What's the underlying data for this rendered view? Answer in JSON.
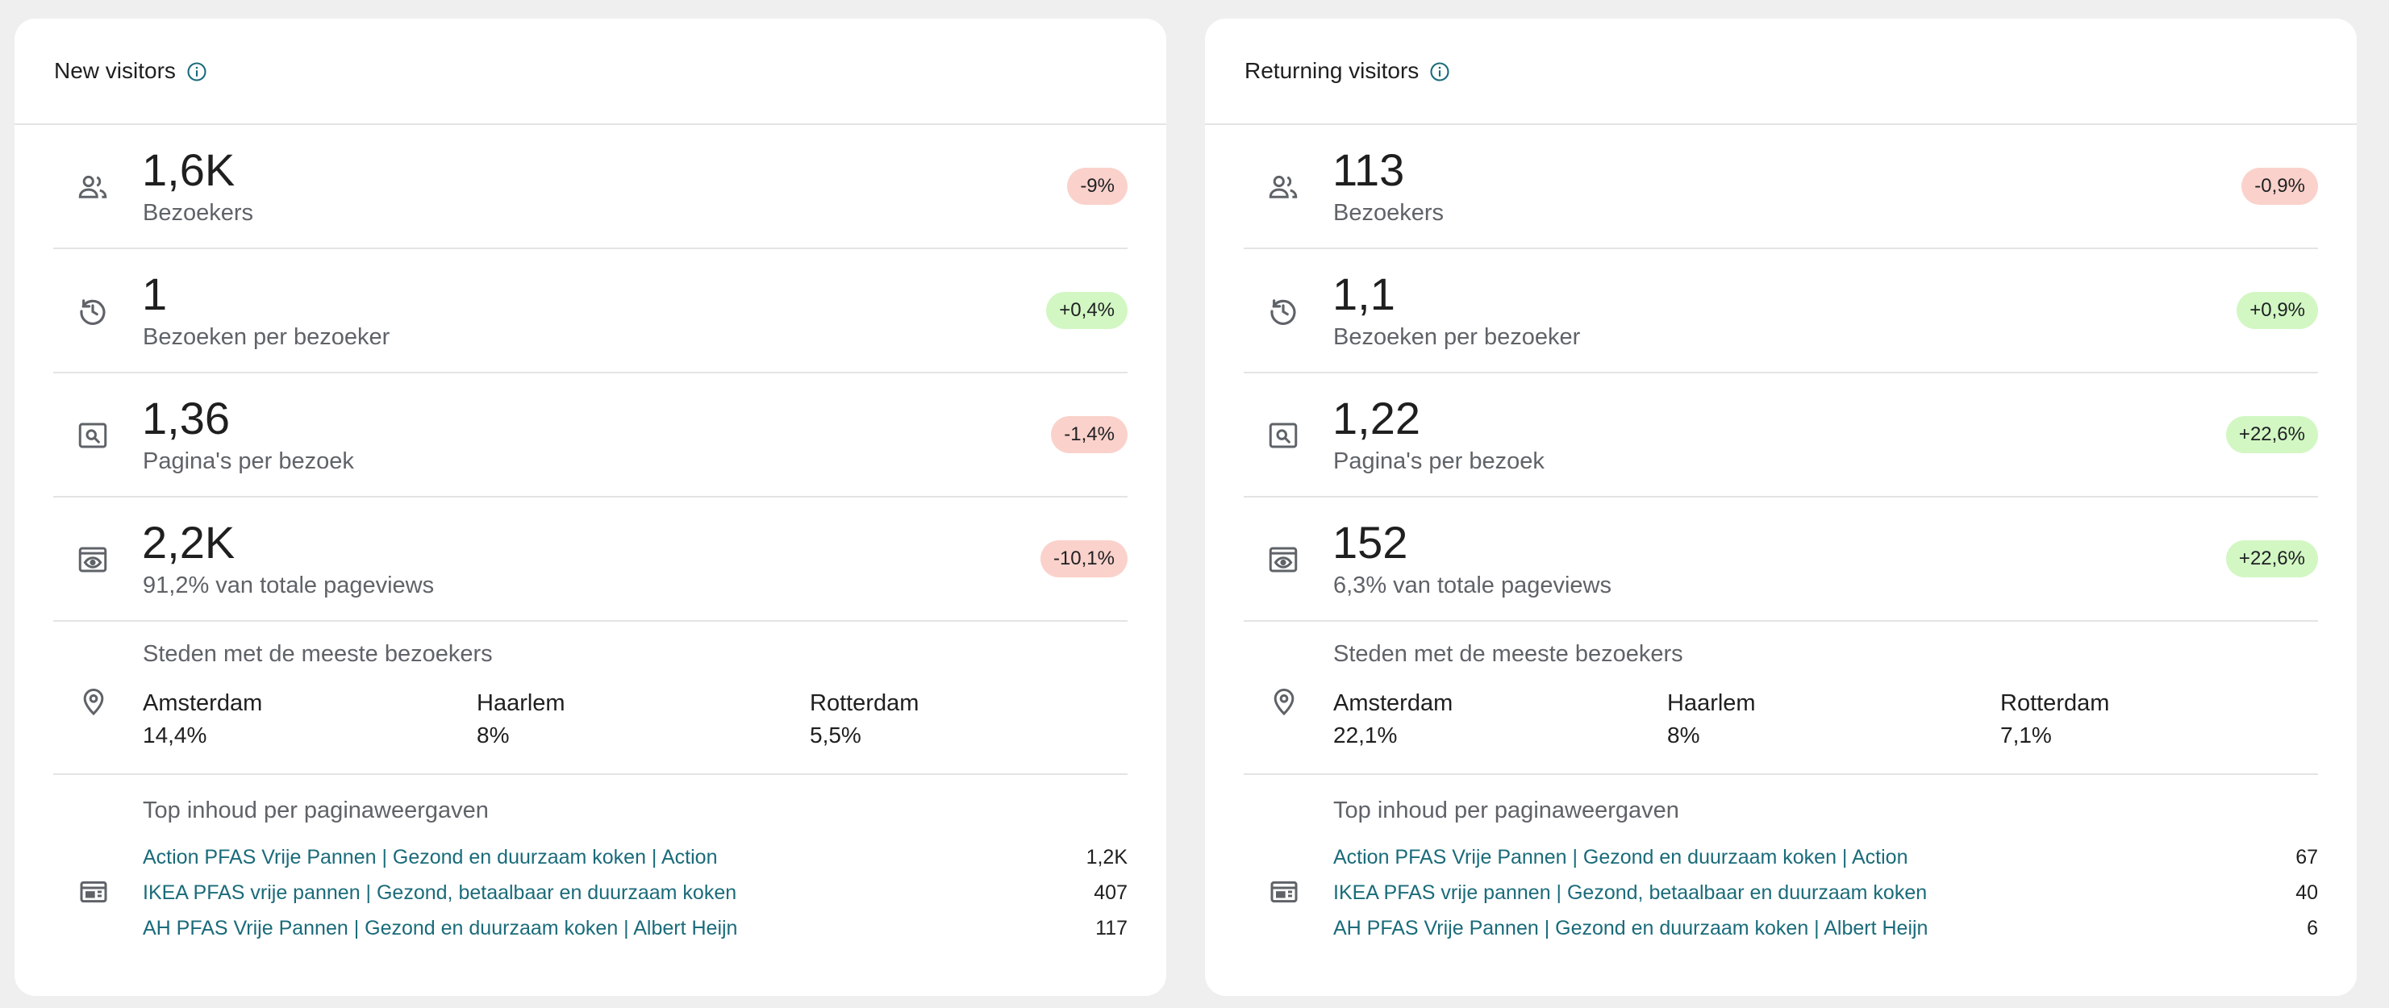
{
  "panels": [
    {
      "title": "New visitors",
      "metrics": [
        {
          "icon": "people-icon",
          "value": "1,6K",
          "label": "Bezoekers",
          "change": "-9%",
          "trend": "negative"
        },
        {
          "icon": "history-icon",
          "value": "1",
          "label": "Bezoeken per bezoeker",
          "change": "+0,4%",
          "trend": "positive"
        },
        {
          "icon": "page-search-icon",
          "value": "1,36",
          "label": "Pagina's per bezoek",
          "change": "-1,4%",
          "trend": "negative"
        },
        {
          "icon": "pageview-icon",
          "value": "2,2K",
          "label": "91,2% van totale pageviews",
          "change": "-10,1%",
          "trend": "negative"
        }
      ],
      "cities": {
        "title": "Steden met de meeste bezoekers",
        "items": [
          {
            "name": "Amsterdam",
            "pct": "14,4%"
          },
          {
            "name": "Haarlem",
            "pct": "8%"
          },
          {
            "name": "Rotterdam",
            "pct": "5,5%"
          }
        ]
      },
      "top_content": {
        "title": "Top inhoud per paginaweergaven",
        "items": [
          {
            "title": "Action PFAS Vrije Pannen | Gezond en duurzaam koken | Action",
            "count": "1,2K"
          },
          {
            "title": "IKEA PFAS vrije pannen | Gezond, betaalbaar en duurzaam koken",
            "count": "407"
          },
          {
            "title": "AH PFAS Vrije Pannen | Gezond en duurzaam koken | Albert Heijn",
            "count": "117"
          }
        ]
      }
    },
    {
      "title": "Returning visitors",
      "metrics": [
        {
          "icon": "people-icon",
          "value": "113",
          "label": "Bezoekers",
          "change": "-0,9%",
          "trend": "negative"
        },
        {
          "icon": "history-icon",
          "value": "1,1",
          "label": "Bezoeken per bezoeker",
          "change": "+0,9%",
          "trend": "positive"
        },
        {
          "icon": "page-search-icon",
          "value": "1,22",
          "label": "Pagina's per bezoek",
          "change": "+22,6%",
          "trend": "positive"
        },
        {
          "icon": "pageview-icon",
          "value": "152",
          "label": "6,3% van totale pageviews",
          "change": "+22,6%",
          "trend": "positive"
        }
      ],
      "cities": {
        "title": "Steden met de meeste bezoekers",
        "items": [
          {
            "name": "Amsterdam",
            "pct": "22,1%"
          },
          {
            "name": "Haarlem",
            "pct": "8%"
          },
          {
            "name": "Rotterdam",
            "pct": "7,1%"
          }
        ]
      },
      "top_content": {
        "title": "Top inhoud per paginaweergaven",
        "items": [
          {
            "title": "Action PFAS Vrije Pannen | Gezond en duurzaam koken | Action",
            "count": "67"
          },
          {
            "title": "IKEA PFAS vrije pannen | Gezond, betaalbaar en duurzaam koken",
            "count": "40"
          },
          {
            "title": "AH PFAS Vrije Pannen | Gezond en duurzaam koken | Albert Heijn",
            "count": "6"
          }
        ]
      }
    }
  ],
  "colors": {
    "negative_badge": "#fad2cb",
    "positive_badge": "#d2f7c3",
    "link": "#1a6b7a",
    "info_icon": "#1a6b7a",
    "muted_text": "#5f6368",
    "background": "#efefef"
  }
}
